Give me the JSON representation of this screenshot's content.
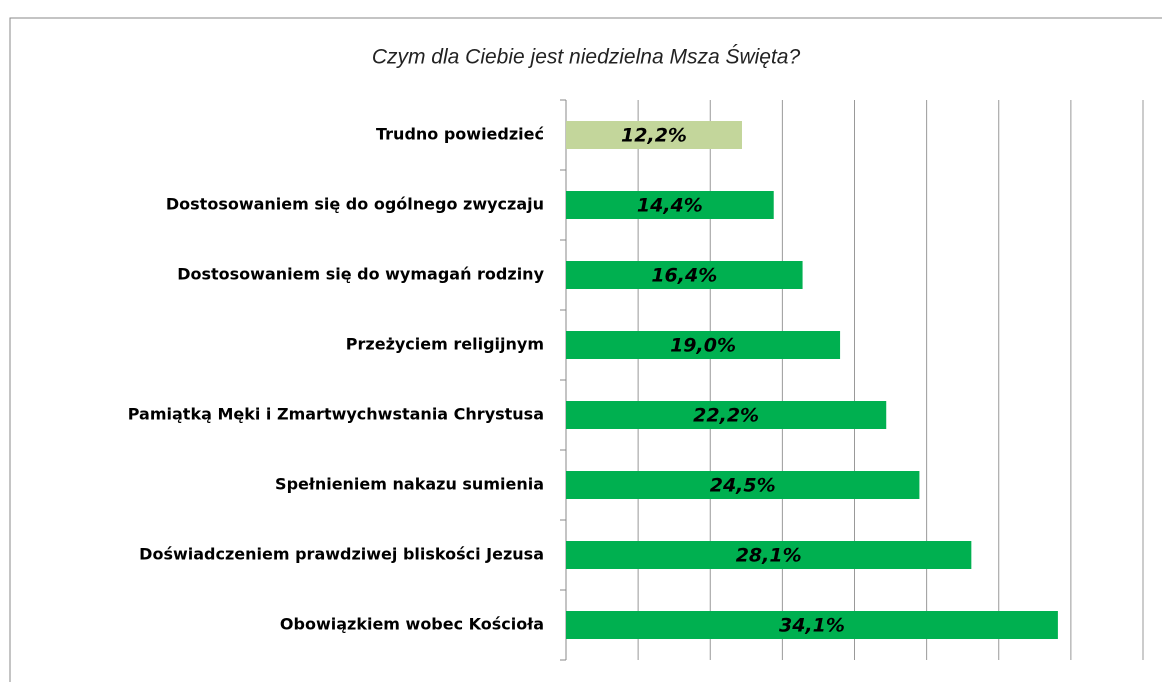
{
  "chart_data": {
    "type": "barh",
    "title": "Czym dla Ciebie jest niedzielna Msza Święta?",
    "categories": [
      "Trudno powiedzieć",
      "Dostosowaniem się do ogólnego zwyczaju",
      "Dostosowaniem się do wymagań rodziny",
      "Przeżyciem religijnym",
      "Pamiątką Męki i Zmartwychwstania Chrystusa",
      "Spełnieniem nakazu sumienia",
      "Doświadczeniem prawdziwej bliskości Jezusa",
      "Obowiązkiem wobec Kościoła"
    ],
    "values": [
      12.2,
      14.4,
      16.4,
      19.0,
      22.2,
      24.5,
      28.1,
      34.1
    ],
    "value_labels": [
      "12,2%",
      "14,4%",
      "16,4%",
      "19,0%",
      "22,2%",
      "24,5%",
      "28,1%",
      "34,1%"
    ],
    "colors": [
      "#c3d69b",
      "#00b050",
      "#00b050",
      "#00b050",
      "#00b050",
      "#00b050",
      "#00b050",
      "#00b050"
    ],
    "xlim": [
      0,
      40
    ],
    "xticks": [
      0,
      5,
      10,
      15,
      20,
      25,
      30,
      35,
      40
    ],
    "grid": true
  }
}
